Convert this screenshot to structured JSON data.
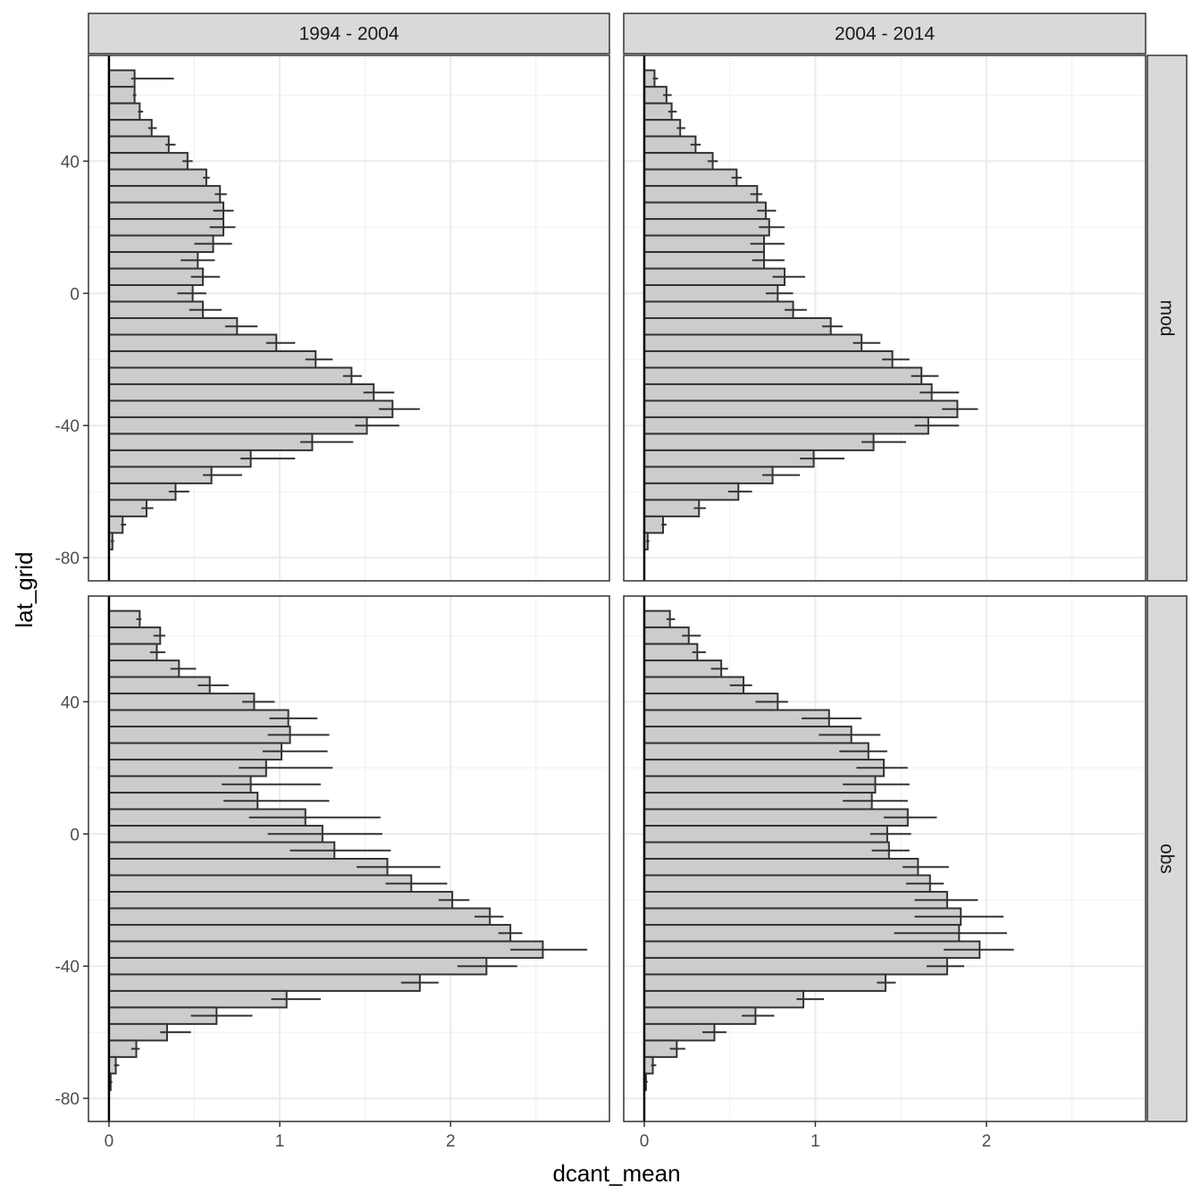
{
  "chart_data": {
    "type": "bar",
    "orientation": "horizontal",
    "xlabel": "dcant_mean",
    "ylabel": "lat_grid",
    "xlim": [
      -0.12,
      2.93
    ],
    "ylim": [
      -87,
      72
    ],
    "x_ticks": [
      0,
      1,
      2
    ],
    "x_tick_labels": [
      "0",
      "1",
      "2"
    ],
    "y_ticks": [
      -80,
      -40,
      0,
      40
    ],
    "y_tick_labels": [
      "-80",
      "-40",
      "0",
      "40"
    ],
    "grid": true,
    "col_facets": [
      "1994 - 2004",
      "2004 - 2014"
    ],
    "row_facets": [
      "mod",
      "obs"
    ],
    "bar_fill": "#cccccc",
    "bar_stroke": "#333333",
    "lat": [
      65,
      60,
      55,
      50,
      45,
      40,
      35,
      30,
      25,
      20,
      15,
      10,
      5,
      0,
      -5,
      -10,
      -15,
      -20,
      -25,
      -30,
      -35,
      -40,
      -45,
      -50,
      -55,
      -60,
      -65,
      -70,
      -75,
      -80
    ],
    "panels": [
      {
        "row": "mod",
        "col": "1994 - 2004",
        "values": [
          0.15,
          0.15,
          0.18,
          0.25,
          0.35,
          0.46,
          0.57,
          0.65,
          0.67,
          0.67,
          0.61,
          0.52,
          0.55,
          0.49,
          0.55,
          0.75,
          0.98,
          1.21,
          1.42,
          1.55,
          1.66,
          1.51,
          1.19,
          0.83,
          0.6,
          0.39,
          0.22,
          0.08,
          0.02,
          null
        ],
        "err_low": [
          0.13,
          0.14,
          0.17,
          0.23,
          0.33,
          0.43,
          0.55,
          0.62,
          0.61,
          0.59,
          0.5,
          0.42,
          0.48,
          0.4,
          0.47,
          0.68,
          0.92,
          1.15,
          1.37,
          1.49,
          1.58,
          1.44,
          1.12,
          0.77,
          0.55,
          0.35,
          0.19,
          0.07,
          0.01,
          null
        ],
        "err_high": [
          0.38,
          0.16,
          0.2,
          0.28,
          0.39,
          0.49,
          0.59,
          0.69,
          0.73,
          0.74,
          0.72,
          0.62,
          0.65,
          0.57,
          0.66,
          0.87,
          1.09,
          1.31,
          1.48,
          1.67,
          1.82,
          1.7,
          1.43,
          1.09,
          0.78,
          0.47,
          0.26,
          0.1,
          0.03,
          null
        ]
      },
      {
        "row": "mod",
        "col": "2004 - 2014",
        "values": [
          0.06,
          0.13,
          0.16,
          0.21,
          0.3,
          0.4,
          0.54,
          0.66,
          0.71,
          0.73,
          0.7,
          0.7,
          0.82,
          0.78,
          0.87,
          1.09,
          1.27,
          1.45,
          1.62,
          1.68,
          1.83,
          1.66,
          1.34,
          0.99,
          0.75,
          0.55,
          0.32,
          0.11,
          0.02,
          null
        ],
        "err_low": [
          0.05,
          0.11,
          0.14,
          0.19,
          0.27,
          0.37,
          0.51,
          0.62,
          0.66,
          0.67,
          0.62,
          0.63,
          0.75,
          0.71,
          0.82,
          1.04,
          1.22,
          1.39,
          1.56,
          1.61,
          1.74,
          1.58,
          1.27,
          0.91,
          0.69,
          0.49,
          0.29,
          0.1,
          0.01,
          null
        ],
        "err_high": [
          0.08,
          0.16,
          0.19,
          0.24,
          0.33,
          0.43,
          0.57,
          0.69,
          0.77,
          0.82,
          0.82,
          0.82,
          0.94,
          0.87,
          0.95,
          1.16,
          1.38,
          1.55,
          1.72,
          1.84,
          1.95,
          1.84,
          1.53,
          1.17,
          0.91,
          0.63,
          0.36,
          0.13,
          0.03,
          null
        ]
      },
      {
        "row": "obs",
        "col": "1994 - 2004",
        "values": [
          0.18,
          0.3,
          0.28,
          0.41,
          0.59,
          0.85,
          1.05,
          1.06,
          1.01,
          0.92,
          0.83,
          0.87,
          1.15,
          1.25,
          1.32,
          1.63,
          1.77,
          2.01,
          2.23,
          2.35,
          2.54,
          2.21,
          1.82,
          1.04,
          0.63,
          0.34,
          0.16,
          0.04,
          0.01,
          null
        ],
        "err_low": [
          0.16,
          0.26,
          0.24,
          0.36,
          0.52,
          0.78,
          0.94,
          0.93,
          0.9,
          0.76,
          0.66,
          0.67,
          0.82,
          0.93,
          1.06,
          1.45,
          1.62,
          1.93,
          2.14,
          2.28,
          2.35,
          2.04,
          1.71,
          0.95,
          0.48,
          0.3,
          0.13,
          0.03,
          0.005,
          null
        ],
        "err_high": [
          0.19,
          0.33,
          0.33,
          0.51,
          0.7,
          0.97,
          1.22,
          1.29,
          1.28,
          1.31,
          1.24,
          1.29,
          1.59,
          1.6,
          1.65,
          1.94,
          1.98,
          2.11,
          2.31,
          2.42,
          2.8,
          2.39,
          1.93,
          1.24,
          0.84,
          0.48,
          0.18,
          0.06,
          0.02,
          null
        ]
      },
      {
        "row": "obs",
        "col": "2004 - 2014",
        "values": [
          0.15,
          0.26,
          0.31,
          0.45,
          0.58,
          0.78,
          1.08,
          1.21,
          1.31,
          1.4,
          1.35,
          1.33,
          1.54,
          1.42,
          1.43,
          1.6,
          1.67,
          1.77,
          1.85,
          1.84,
          1.96,
          1.77,
          1.41,
          0.93,
          0.65,
          0.41,
          0.19,
          0.05,
          0.01,
          null
        ],
        "err_low": [
          0.13,
          0.22,
          0.28,
          0.39,
          0.5,
          0.65,
          0.92,
          1.02,
          1.14,
          1.24,
          1.16,
          1.16,
          1.4,
          1.32,
          1.33,
          1.51,
          1.53,
          1.58,
          1.58,
          1.46,
          1.75,
          1.65,
          1.36,
          0.89,
          0.57,
          0.34,
          0.15,
          0.04,
          0.005,
          null
        ],
        "err_high": [
          0.18,
          0.33,
          0.36,
          0.49,
          0.63,
          0.84,
          1.27,
          1.38,
          1.42,
          1.54,
          1.55,
          1.54,
          1.71,
          1.56,
          1.55,
          1.78,
          1.75,
          1.95,
          2.1,
          2.12,
          2.16,
          1.87,
          1.47,
          1.05,
          0.76,
          0.48,
          0.24,
          0.07,
          0.02,
          null
        ]
      }
    ]
  }
}
